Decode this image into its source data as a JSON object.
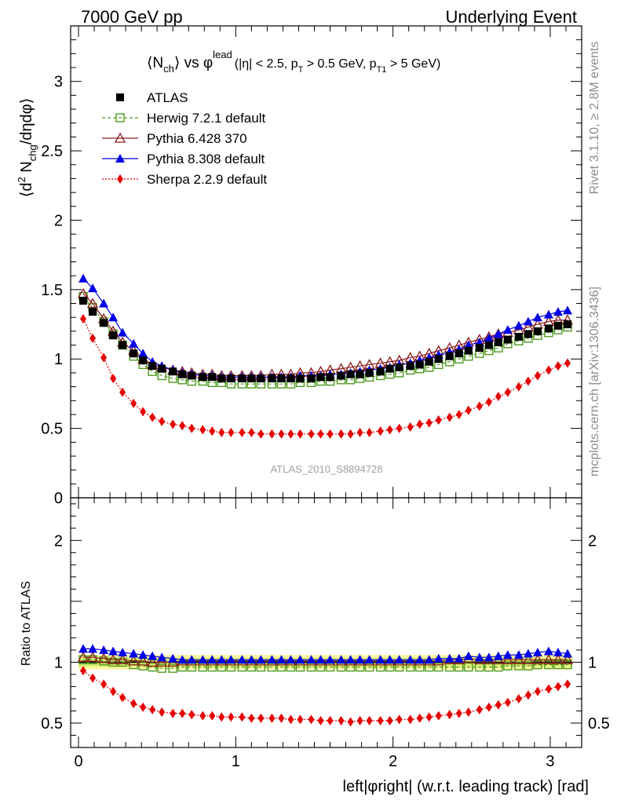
{
  "header": {
    "left": "7000 GeV pp",
    "right": "Underlying Event"
  },
  "plot_title": {
    "main": "⟨N",
    "main_sub": "ch",
    "main_vs": "⟩ vs φ",
    "main_sup": "lead",
    "cuts_a": "(|η| < 2.5, p",
    "cuts_a_sub": "T",
    "cuts_b": " > 0.5 GeV, p",
    "cuts_b_sub": "T1",
    "cuts_c": " > 5 GeV)"
  },
  "y_title_top": {
    "a": "⟨d",
    "a_sup": "2",
    "b": " N",
    "b_sub": "chg",
    "c": "/dηdφ⟩"
  },
  "y_title_bottom": "Ratio to ATLAS",
  "x_title": "left|φright| (w.r.t. leading track) [rad]",
  "analysis_id": "ATLAS_2010_S8894728",
  "side_right_top": "Rivet 3.1.10, ≥ 2.8M events",
  "side_right_bottom": "mcplots.cern.ch [arXiv:1306.3436]",
  "colors": {
    "atlas": "#000000",
    "herwig": "#4f9a1e",
    "pythia6": "#8b1a1a",
    "pythia8": "#0000e6",
    "sherpa": "#e60000",
    "band_inner": "#d7f070",
    "band_outer": "#fbf7a0"
  },
  "chart_data": [
    {
      "type": "scatter",
      "panel": "main",
      "xlim": [
        -0.05,
        3.2
      ],
      "ylim": [
        0,
        3.4
      ],
      "y_ticks": [
        0,
        0.5,
        1,
        1.5,
        2,
        2.5,
        3
      ],
      "y_tick_labels": [
        "0",
        "0.5",
        "1",
        "1.5",
        "2",
        "2.5",
        "3"
      ],
      "x": [
        0.03,
        0.09,
        0.16,
        0.22,
        0.28,
        0.35,
        0.41,
        0.47,
        0.53,
        0.6,
        0.66,
        0.72,
        0.79,
        0.85,
        0.91,
        0.97,
        1.04,
        1.1,
        1.16,
        1.23,
        1.29,
        1.35,
        1.41,
        1.48,
        1.54,
        1.6,
        1.67,
        1.73,
        1.79,
        1.85,
        1.92,
        1.98,
        2.04,
        2.11,
        2.17,
        2.23,
        2.29,
        2.36,
        2.42,
        2.48,
        2.55,
        2.61,
        2.67,
        2.73,
        2.8,
        2.86,
        2.92,
        2.99,
        3.05,
        3.11
      ],
      "legend": [
        {
          "label": "ATLAS",
          "key": "atlas"
        },
        {
          "label": "Herwig 7.2.1 default",
          "key": "herwig"
        },
        {
          "label": "Pythia 6.428 370",
          "key": "pythia6"
        },
        {
          "label": "Pythia 8.308 default",
          "key": "pythia8"
        },
        {
          "label": "Sherpa 2.2.9 default",
          "key": "sherpa"
        }
      ],
      "series": [
        {
          "name": "ATLAS",
          "key": "atlas",
          "values": [
            1.42,
            1.34,
            1.26,
            1.17,
            1.1,
            1.04,
            0.99,
            0.95,
            0.93,
            0.91,
            0.89,
            0.88,
            0.87,
            0.87,
            0.86,
            0.86,
            0.86,
            0.86,
            0.86,
            0.86,
            0.86,
            0.86,
            0.86,
            0.86,
            0.87,
            0.87,
            0.88,
            0.89,
            0.89,
            0.9,
            0.91,
            0.93,
            0.94,
            0.95,
            0.96,
            0.98,
            1.0,
            1.02,
            1.04,
            1.06,
            1.08,
            1.1,
            1.12,
            1.14,
            1.16,
            1.18,
            1.2,
            1.22,
            1.24,
            1.25
          ]
        },
        {
          "name": "Herwig 7.2.1 default",
          "key": "herwig",
          "values": [
            1.45,
            1.37,
            1.27,
            1.18,
            1.1,
            1.02,
            0.96,
            0.91,
            0.88,
            0.86,
            0.85,
            0.84,
            0.84,
            0.83,
            0.83,
            0.82,
            0.82,
            0.82,
            0.82,
            0.82,
            0.82,
            0.82,
            0.83,
            0.83,
            0.84,
            0.84,
            0.85,
            0.85,
            0.86,
            0.87,
            0.88,
            0.89,
            0.9,
            0.92,
            0.93,
            0.94,
            0.96,
            0.98,
            1.0,
            1.02,
            1.04,
            1.06,
            1.08,
            1.11,
            1.13,
            1.15,
            1.17,
            1.19,
            1.21,
            1.23
          ]
        },
        {
          "name": "Pythia 6.428 370",
          "key": "pythia6",
          "values": [
            1.47,
            1.4,
            1.29,
            1.2,
            1.12,
            1.06,
            1.0,
            0.96,
            0.94,
            0.92,
            0.91,
            0.9,
            0.89,
            0.89,
            0.88,
            0.88,
            0.88,
            0.88,
            0.88,
            0.89,
            0.89,
            0.89,
            0.9,
            0.9,
            0.91,
            0.92,
            0.93,
            0.94,
            0.95,
            0.96,
            0.97,
            0.98,
            0.99,
            1.01,
            1.02,
            1.04,
            1.06,
            1.08,
            1.1,
            1.12,
            1.14,
            1.16,
            1.18,
            1.19,
            1.21,
            1.23,
            1.25,
            1.27,
            1.28,
            1.28
          ]
        },
        {
          "name": "Pythia 8.308 default",
          "key": "pythia8",
          "values": [
            1.58,
            1.51,
            1.4,
            1.3,
            1.19,
            1.11,
            1.04,
            0.98,
            0.95,
            0.92,
            0.9,
            0.89,
            0.88,
            0.88,
            0.87,
            0.87,
            0.87,
            0.87,
            0.87,
            0.87,
            0.87,
            0.87,
            0.88,
            0.88,
            0.88,
            0.89,
            0.89,
            0.9,
            0.91,
            0.92,
            0.93,
            0.94,
            0.96,
            0.97,
            0.99,
            1.01,
            1.03,
            1.05,
            1.07,
            1.1,
            1.12,
            1.15,
            1.18,
            1.21,
            1.24,
            1.27,
            1.3,
            1.32,
            1.34,
            1.35
          ]
        },
        {
          "name": "Sherpa 2.2.9 default",
          "key": "sherpa",
          "values": [
            1.29,
            1.15,
            1.01,
            0.86,
            0.76,
            0.68,
            0.62,
            0.58,
            0.55,
            0.53,
            0.52,
            0.5,
            0.49,
            0.48,
            0.47,
            0.47,
            0.47,
            0.47,
            0.46,
            0.46,
            0.46,
            0.46,
            0.46,
            0.46,
            0.46,
            0.46,
            0.46,
            0.46,
            0.47,
            0.47,
            0.48,
            0.49,
            0.5,
            0.51,
            0.53,
            0.54,
            0.56,
            0.58,
            0.6,
            0.63,
            0.66,
            0.69,
            0.73,
            0.76,
            0.8,
            0.84,
            0.88,
            0.92,
            0.95,
            0.97
          ]
        }
      ]
    },
    {
      "type": "scatter",
      "panel": "ratio",
      "xlim": [
        -0.05,
        3.2
      ],
      "ylim": [
        0.3,
        2.35
      ],
      "x_ticks": [
        0,
        1,
        2,
        3
      ],
      "x_tick_labels": [
        "0",
        "1",
        "2",
        "3"
      ],
      "y_ticks": [
        0.5,
        1,
        2
      ],
      "y_tick_labels": [
        "0.5",
        "1",
        "2"
      ],
      "x": [
        0.03,
        0.09,
        0.16,
        0.22,
        0.28,
        0.35,
        0.41,
        0.47,
        0.53,
        0.6,
        0.66,
        0.72,
        0.79,
        0.85,
        0.91,
        0.97,
        1.04,
        1.1,
        1.16,
        1.23,
        1.29,
        1.35,
        1.41,
        1.48,
        1.54,
        1.6,
        1.67,
        1.73,
        1.79,
        1.85,
        1.92,
        1.98,
        2.04,
        2.11,
        2.17,
        2.23,
        2.29,
        2.36,
        2.42,
        2.48,
        2.55,
        2.61,
        2.67,
        2.73,
        2.8,
        2.86,
        2.92,
        2.99,
        3.05,
        3.11
      ],
      "band_inner": [
        0.965,
        1.035
      ],
      "band_outer": [
        0.94,
        1.06
      ],
      "series": [
        {
          "name": "Herwig 7.2.1 default",
          "key": "herwig",
          "values": [
            1.02,
            1.02,
            1.01,
            1.0,
            1.0,
            0.98,
            0.97,
            0.96,
            0.95,
            0.95,
            0.96,
            0.96,
            0.96,
            0.96,
            0.96,
            0.96,
            0.96,
            0.96,
            0.96,
            0.96,
            0.96,
            0.96,
            0.96,
            0.96,
            0.96,
            0.96,
            0.96,
            0.96,
            0.96,
            0.96,
            0.96,
            0.96,
            0.96,
            0.96,
            0.96,
            0.96,
            0.96,
            0.96,
            0.96,
            0.96,
            0.96,
            0.96,
            0.96,
            0.97,
            0.97,
            0.97,
            0.98,
            0.98,
            0.98,
            0.98
          ]
        },
        {
          "name": "Pythia 6.428 370",
          "key": "pythia6",
          "values": [
            1.04,
            1.04,
            1.03,
            1.02,
            1.02,
            1.01,
            1.01,
            1.0,
            1.0,
            1.0,
            1.01,
            1.01,
            1.01,
            1.01,
            1.01,
            1.01,
            1.01,
            1.01,
            1.01,
            1.01,
            1.01,
            1.01,
            1.01,
            1.01,
            1.01,
            1.01,
            1.01,
            1.01,
            1.01,
            1.01,
            1.01,
            1.01,
            1.01,
            1.01,
            1.01,
            1.01,
            1.01,
            1.02,
            1.02,
            1.03,
            1.02,
            1.02,
            1.02,
            1.02,
            1.02,
            1.02,
            1.02,
            1.02,
            1.02,
            1.02
          ]
        },
        {
          "name": "Pythia 8.308 default",
          "key": "pythia8",
          "values": [
            1.11,
            1.11,
            1.1,
            1.09,
            1.08,
            1.07,
            1.06,
            1.05,
            1.04,
            1.03,
            1.02,
            1.02,
            1.02,
            1.02,
            1.02,
            1.02,
            1.02,
            1.02,
            1.02,
            1.02,
            1.02,
            1.02,
            1.02,
            1.02,
            1.02,
            1.02,
            1.02,
            1.02,
            1.02,
            1.02,
            1.02,
            1.02,
            1.02,
            1.02,
            1.02,
            1.02,
            1.03,
            1.03,
            1.03,
            1.05,
            1.04,
            1.04,
            1.05,
            1.06,
            1.06,
            1.07,
            1.08,
            1.09,
            1.08,
            1.07
          ]
        },
        {
          "name": "Sherpa 2.2.9 default",
          "key": "sherpa",
          "values": [
            0.93,
            0.87,
            0.82,
            0.76,
            0.71,
            0.66,
            0.63,
            0.61,
            0.59,
            0.58,
            0.58,
            0.57,
            0.56,
            0.56,
            0.55,
            0.55,
            0.55,
            0.54,
            0.54,
            0.54,
            0.54,
            0.53,
            0.53,
            0.53,
            0.52,
            0.52,
            0.52,
            0.51,
            0.52,
            0.52,
            0.52,
            0.52,
            0.53,
            0.53,
            0.54,
            0.55,
            0.56,
            0.57,
            0.58,
            0.59,
            0.61,
            0.63,
            0.65,
            0.67,
            0.7,
            0.73,
            0.76,
            0.78,
            0.8,
            0.82
          ]
        }
      ]
    }
  ]
}
